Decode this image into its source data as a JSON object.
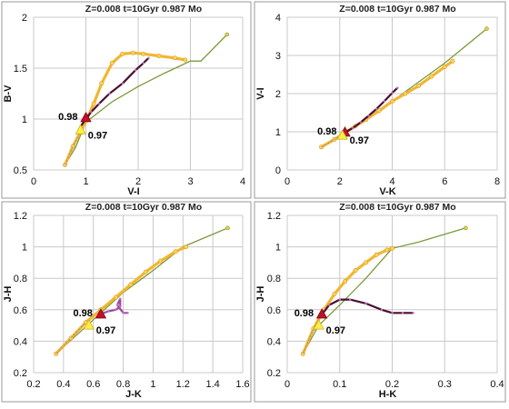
{
  "chart_data": [
    {
      "type": "line",
      "title": "Z=0.008  t=10Gyr  0.987 Mo",
      "xlabel": "V-I",
      "ylabel": "B-V",
      "xlim": [
        0,
        4
      ],
      "ylim": [
        0.5,
        2
      ],
      "xticks": [
        0,
        1,
        2,
        3,
        4
      ],
      "yticks": [
        0.5,
        1,
        1.5,
        2
      ],
      "xtick_labels": [
        "0",
        "1",
        "2",
        "3",
        "4"
      ],
      "ytick_labels": [
        "0.5",
        "1",
        "1.5",
        "2"
      ],
      "grid": true,
      "series": [
        {
          "style": "green",
          "color": "#7a9a3a",
          "x": [
            0.6,
            0.8,
            1.0,
            1.5,
            2.0,
            2.5,
            3.0,
            3.2,
            3.7
          ],
          "y": [
            0.55,
            0.72,
            0.97,
            1.17,
            1.32,
            1.45,
            1.57,
            1.57,
            1.83
          ]
        },
        {
          "style": "orange",
          "color": "#f2b630",
          "x": [
            0.6,
            0.75,
            0.9,
            1.0,
            1.15,
            1.3,
            1.5,
            1.7,
            1.9,
            2.1,
            2.4,
            2.7,
            2.9
          ],
          "y": [
            0.55,
            0.73,
            0.88,
            0.98,
            1.15,
            1.35,
            1.55,
            1.64,
            1.65,
            1.64,
            1.62,
            1.6,
            1.58
          ]
        },
        {
          "style": "purple",
          "color": "#4a1030",
          "x": [
            0.9,
            1.0,
            1.1,
            1.25,
            1.45,
            1.7,
            1.95,
            2.1,
            2.2
          ],
          "y": [
            0.93,
            1.0,
            1.07,
            1.15,
            1.25,
            1.35,
            1.48,
            1.55,
            1.6
          ]
        }
      ],
      "markers": [
        {
          "label": "0.98",
          "x": 1.0,
          "y": 1.01,
          "color": "#c0102a"
        },
        {
          "label": "0.97",
          "x": 0.9,
          "y": 0.89,
          "color": "#ffee44"
        }
      ]
    },
    {
      "type": "line",
      "title": "Z=0.008  t=10Gyr  0.987 Mo",
      "xlabel": "V-K",
      "ylabel": "V-I",
      "xlim": [
        0,
        8
      ],
      "ylim": [
        0,
        4
      ],
      "xticks": [
        0,
        2,
        4,
        6,
        8
      ],
      "yticks": [
        0,
        1,
        2,
        3,
        4
      ],
      "xtick_labels": [
        "0",
        "2",
        "4",
        "6",
        "8"
      ],
      "ytick_labels": [
        "0",
        "1",
        "2",
        "3",
        "4"
      ],
      "grid": true,
      "series": [
        {
          "style": "green",
          "color": "#7a9a3a",
          "x": [
            1.3,
            2.0,
            3.0,
            4.0,
            5.0,
            6.0,
            7.6
          ],
          "y": [
            0.6,
            0.9,
            1.35,
            1.8,
            2.3,
            2.8,
            3.7
          ]
        },
        {
          "style": "orange",
          "color": "#f2b630",
          "x": [
            1.3,
            1.8,
            2.2,
            2.6,
            3.0,
            3.5,
            4.0,
            4.5,
            5.0,
            5.5,
            6.0,
            6.3
          ],
          "y": [
            0.6,
            0.8,
            0.98,
            1.15,
            1.32,
            1.55,
            1.8,
            2.0,
            2.2,
            2.45,
            2.7,
            2.85
          ]
        },
        {
          "style": "purple",
          "color": "#4a1030",
          "x": [
            2.2,
            2.5,
            2.8,
            3.1,
            3.4,
            3.7,
            4.0,
            4.2
          ],
          "y": [
            0.98,
            1.1,
            1.25,
            1.42,
            1.6,
            1.8,
            2.02,
            2.15
          ]
        }
      ],
      "markers": [
        {
          "label": "0.98",
          "x": 2.2,
          "y": 0.98,
          "color": "#c0102a"
        },
        {
          "label": "0.97",
          "x": 2.1,
          "y": 0.9,
          "color": "#ffee44"
        }
      ]
    },
    {
      "type": "line",
      "title": "Z=0.008  t=10Gyr  0.987 Mo",
      "xlabel": "J-K",
      "ylabel": "J-H",
      "xlim": [
        0.2,
        1.6
      ],
      "ylim": [
        0.2,
        1.2
      ],
      "xticks": [
        0.2,
        0.4,
        0.6,
        0.8,
        1.0,
        1.2,
        1.4,
        1.6
      ],
      "yticks": [
        0.2,
        0.4,
        0.6,
        0.8,
        1.0,
        1.2
      ],
      "xtick_labels": [
        "0.2",
        "0.4",
        "0.6",
        "0.8",
        "1",
        "1.2",
        "1.4",
        "1.6"
      ],
      "ytick_labels": [
        "0.2",
        "0.4",
        "0.6",
        "0.8",
        "1",
        "1.2"
      ],
      "grid": true,
      "series": [
        {
          "style": "green",
          "color": "#7a9a3a",
          "x": [
            0.35,
            0.5,
            0.65,
            0.8,
            1.0,
            1.2,
            1.5
          ],
          "y": [
            0.32,
            0.45,
            0.58,
            0.71,
            0.85,
            1.0,
            1.12
          ]
        },
        {
          "style": "orange",
          "color": "#f2b630",
          "x": [
            0.35,
            0.45,
            0.55,
            0.65,
            0.75,
            0.85,
            0.95,
            1.05,
            1.15,
            1.22
          ],
          "y": [
            0.32,
            0.42,
            0.52,
            0.6,
            0.68,
            0.76,
            0.84,
            0.91,
            0.97,
            1.0
          ]
        },
        {
          "style": "purple",
          "color": "#a04a9a",
          "x": [
            0.64,
            0.7,
            0.75,
            0.78,
            0.78,
            0.76,
            0.8,
            0.83
          ],
          "y": [
            0.57,
            0.59,
            0.6,
            0.62,
            0.67,
            0.63,
            0.58,
            0.58
          ]
        }
      ],
      "markers": [
        {
          "label": "0.98",
          "x": 0.65,
          "y": 0.57,
          "color": "#c0102a"
        },
        {
          "label": "0.97",
          "x": 0.57,
          "y": 0.5,
          "color": "#ffee44"
        }
      ]
    },
    {
      "type": "line",
      "title": "Z=0.008  t=10Gyr  0.987 Mo",
      "xlabel": "H-K",
      "ylabel": "J-H",
      "xlim": [
        0,
        0.4
      ],
      "ylim": [
        0.2,
        1.2
      ],
      "xticks": [
        0,
        0.1,
        0.2,
        0.3,
        0.4
      ],
      "yticks": [
        0.2,
        0.4,
        0.6,
        0.8,
        1.0,
        1.2
      ],
      "xtick_labels": [
        "0",
        "0.1",
        "0.2",
        "0.3",
        "0.4"
      ],
      "ytick_labels": [
        "0.2",
        "0.4",
        "0.6",
        "0.8",
        "1",
        "1.2"
      ],
      "grid": true,
      "series": [
        {
          "style": "green",
          "color": "#7a9a3a",
          "x": [
            0.03,
            0.06,
            0.1,
            0.15,
            0.2,
            0.25,
            0.34
          ],
          "y": [
            0.32,
            0.5,
            0.63,
            0.8,
            0.99,
            1.03,
            1.12
          ]
        },
        {
          "style": "orange",
          "color": "#f2b630",
          "x": [
            0.03,
            0.05,
            0.07,
            0.09,
            0.11,
            0.13,
            0.15,
            0.17,
            0.19,
            0.2
          ],
          "y": [
            0.32,
            0.48,
            0.6,
            0.7,
            0.78,
            0.85,
            0.9,
            0.95,
            0.98,
            0.99
          ]
        },
        {
          "style": "purple",
          "color": "#4a1030",
          "x": [
            0.066,
            0.08,
            0.1,
            0.12,
            0.15,
            0.18,
            0.2,
            0.22,
            0.24
          ],
          "y": [
            0.57,
            0.63,
            0.665,
            0.665,
            0.64,
            0.6,
            0.58,
            0.58,
            0.58
          ]
        }
      ],
      "markers": [
        {
          "label": "0.98",
          "x": 0.066,
          "y": 0.57,
          "color": "#c0102a"
        },
        {
          "label": "0.97",
          "x": 0.06,
          "y": 0.5,
          "color": "#ffee44"
        }
      ]
    }
  ]
}
